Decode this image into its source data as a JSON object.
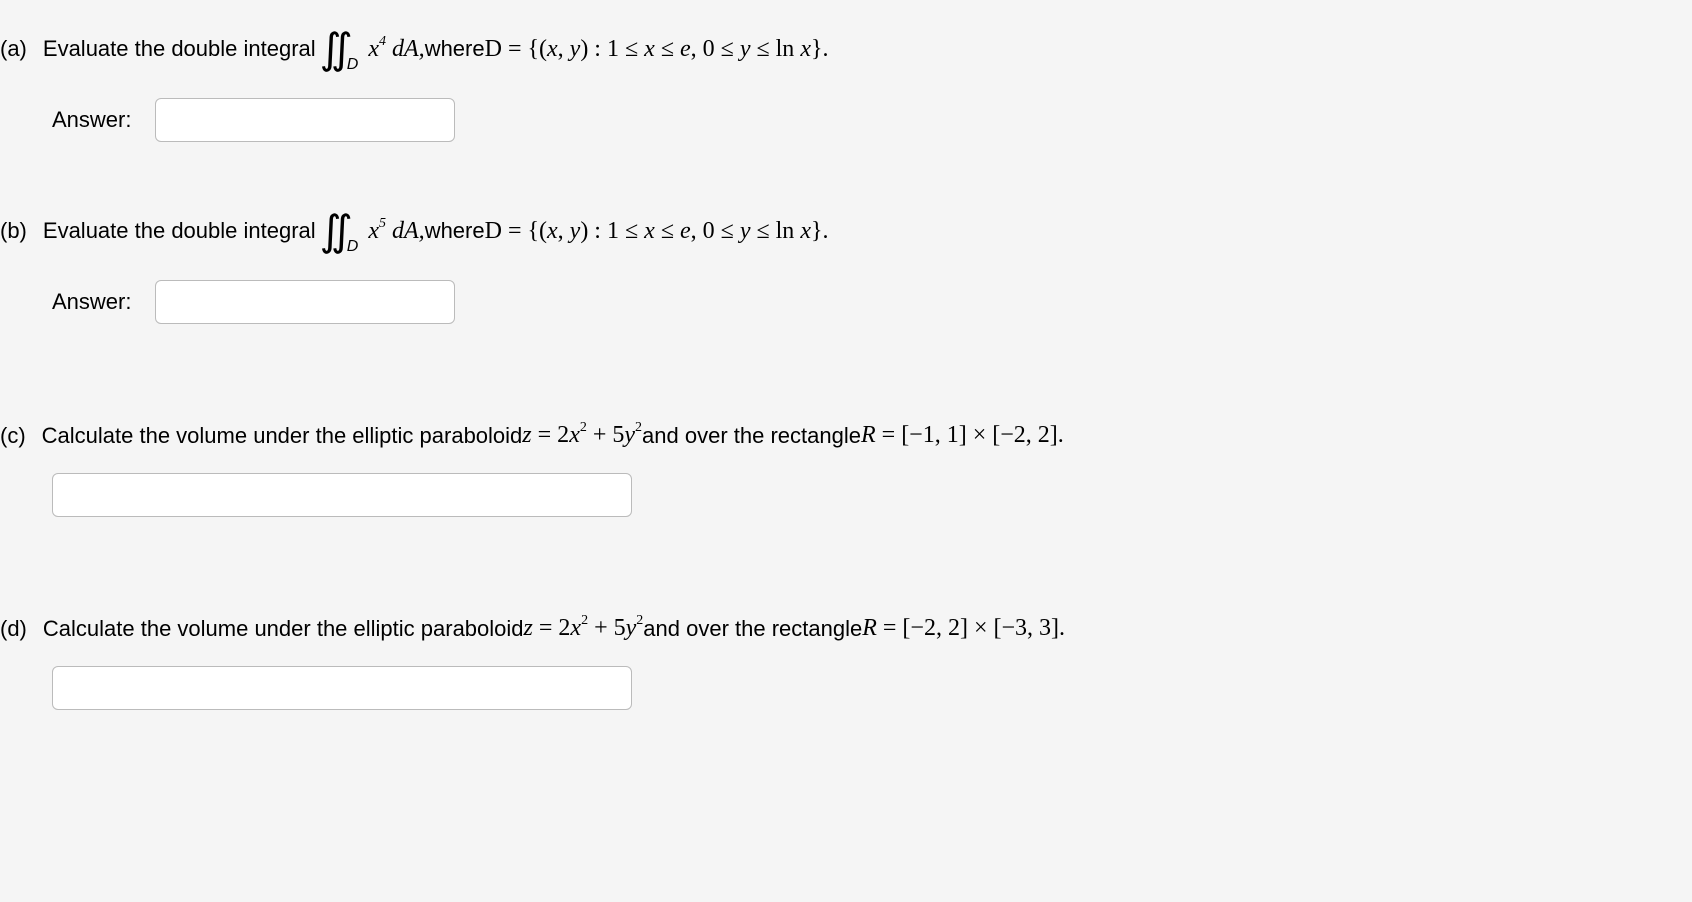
{
  "parts": {
    "a": {
      "label": "(a)",
      "text1": "Evaluate the double integral",
      "integral_sub": "D",
      "integrand_base": "x",
      "integrand_exp": "4",
      "integrand_post": " dA,",
      "text2": " where ",
      "region": "D = {(x, y) : 1 ≤ x ≤ e, 0 ≤ y ≤ ln x}.",
      "answer_label": "Answer:"
    },
    "b": {
      "label": "(b)",
      "text1": "Evaluate the double integral",
      "integral_sub": "D",
      "integrand_base": "x",
      "integrand_exp": "5",
      "integrand_post": " dA,",
      "text2": " where ",
      "region": "D = {(x, y) : 1 ≤ x ≤ e, 0 ≤ y ≤ ln x}.",
      "answer_label": "Answer:"
    },
    "c": {
      "label": "(c)",
      "text1": "Calculate the volume under the elliptic paraboloid ",
      "eq_prefix": "z = 2x",
      "eq_exp1": "2",
      "eq_mid": " + 5y",
      "eq_exp2": "2",
      "text2": " and over the rectangle ",
      "rect": "R = [−1, 1] × [−2, 2]."
    },
    "d": {
      "label": "(d)",
      "text1": "Calculate the volume under the elliptic paraboloid ",
      "eq_prefix": "z = 2x",
      "eq_exp1": "2",
      "eq_mid": " + 5y",
      "eq_exp2": "2",
      "text2": " and over the rectangle ",
      "rect": "R = [−2, 2] × [−3, 3]."
    }
  },
  "styling": {
    "background": "#f5f5f5",
    "input_border": "#bbbbbb",
    "input_bg": "#ffffff",
    "text_color": "#000000",
    "body_font": "Arial",
    "math_font": "Times New Roman",
    "body_fontsize": 22,
    "math_fontsize": 24,
    "integral_fontsize": 42
  }
}
